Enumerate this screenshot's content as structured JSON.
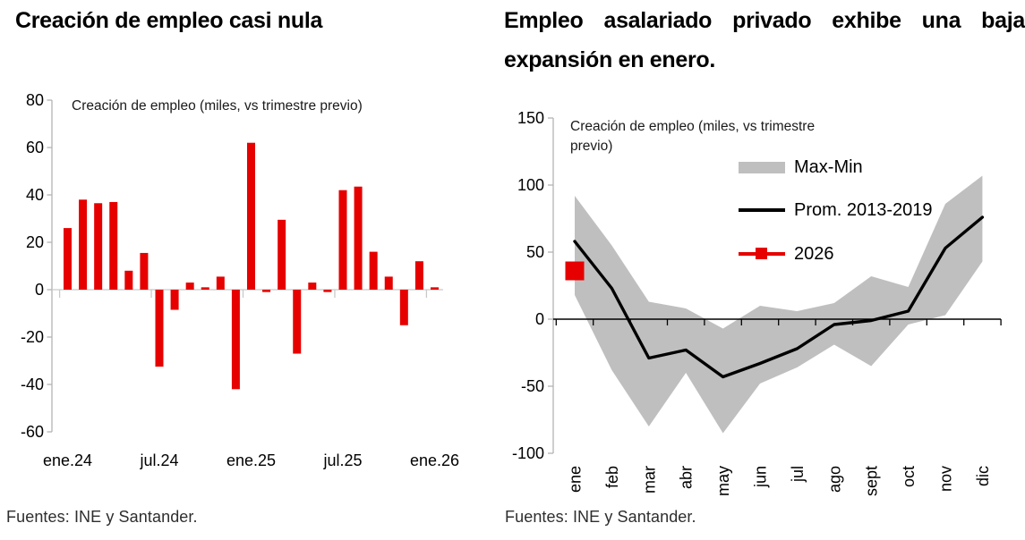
{
  "charts": {
    "left": {
      "title": "Creación de empleo casi nula",
      "inner_label": "Creación de empleo (miles, vs trimestre previo)",
      "source": "Fuentes: INE y Santander."
    },
    "right": {
      "title_lines": [
        "Empleo asalariado privado exhibe una baja",
        "expansión en enero."
      ],
      "inner_label": "Creación de empleo (miles, vs trimestre previo)",
      "source": "Fuentes: INE y Santander.",
      "legend": {
        "band": "Max-Min",
        "line": "Prom. 2013-2019",
        "point": "2026"
      }
    }
  },
  "colors": {
    "red": "#e60000",
    "band_gray": "#bfbfbf",
    "black": "#000000",
    "axis_gray": "#b3b3b3",
    "zero_gray": "#c9c9c9"
  },
  "chart_data": [
    {
      "type": "bar",
      "title": "Creación de empleo casi nula",
      "label": "Creación de empleo (miles, vs trimestre previo)",
      "ylim": [
        -60,
        80
      ],
      "yticks": [
        80,
        60,
        40,
        20,
        0,
        -20,
        -40,
        -60
      ],
      "x_tick_labels": [
        "ene.24",
        "jul.24",
        "ene.25",
        "jul.25",
        "ene.26"
      ],
      "x_tick_positions": [
        0,
        6,
        12,
        18,
        24
      ],
      "values": [
        26,
        38,
        36.5,
        37,
        8,
        15.5,
        -32.5,
        -8.5,
        3,
        1,
        5.5,
        -42,
        62,
        -1,
        29.5,
        -27,
        3,
        -1,
        42,
        43.5,
        16,
        5.5,
        -15,
        12,
        1
      ],
      "bar_color": "#e60000"
    },
    {
      "type": "line",
      "title": "Empleo asalariado privado exhibe una baja expansión en enero.",
      "label": "Creación de empleo (miles, vs trimestre previo)",
      "ylim": [
        -100,
        150
      ],
      "yticks": [
        150,
        100,
        50,
        0,
        -50,
        -100
      ],
      "categories": [
        "ene",
        "feb",
        "mar",
        "abr",
        "may",
        "jun",
        "jul",
        "ago",
        "sept",
        "oct",
        "nov",
        "dic"
      ],
      "series": [
        {
          "name": "Max-Min",
          "type": "band",
          "color": "#bfbfbf",
          "max": [
            92,
            55,
            13,
            8,
            -7,
            10,
            6,
            12,
            32,
            24,
            86,
            107
          ],
          "min": [
            18,
            -38,
            -80,
            -40,
            -85,
            -48,
            -36,
            -19,
            -35,
            -4,
            3,
            43
          ]
        },
        {
          "name": "Prom. 2013-2019",
          "type": "line",
          "color": "#000000",
          "values": [
            58,
            23,
            -29,
            -23,
            -43,
            -33,
            -22,
            -4,
            -1,
            6,
            53,
            76
          ]
        },
        {
          "name": "2026",
          "type": "point",
          "color": "#e60000",
          "month": "ene",
          "month_index": 0,
          "value": 36
        }
      ],
      "legend_position": "upper-right"
    }
  ]
}
